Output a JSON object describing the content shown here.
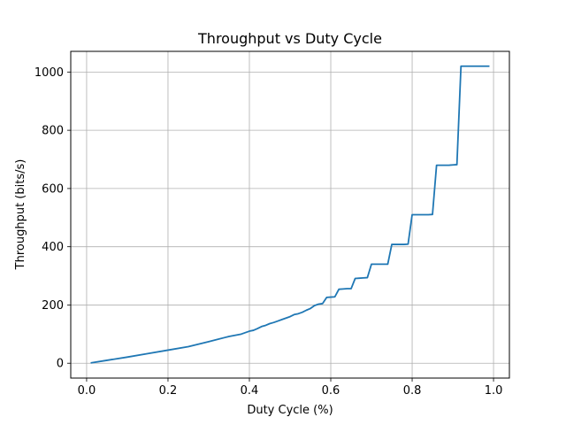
{
  "chart_data": {
    "type": "line",
    "title": "Throughput vs Duty Cycle",
    "xlabel": "Duty Cycle (%)",
    "ylabel": "Throughput (bits/s)",
    "xlim": [
      -0.039,
      1.039
    ],
    "ylim": [
      -51,
      1071
    ],
    "xticks": [
      0.0,
      0.2,
      0.4,
      0.6,
      0.8,
      1.0
    ],
    "xtick_labels": [
      "0.0",
      "0.2",
      "0.4",
      "0.6",
      "0.8",
      "1.0"
    ],
    "yticks": [
      0,
      200,
      400,
      600,
      800,
      1000
    ],
    "ytick_labels": [
      "0",
      "200",
      "400",
      "600",
      "800",
      "1000"
    ],
    "grid": true,
    "series": [
      {
        "color": "#1f77b4",
        "x": [
          0.01,
          0.05,
          0.1,
          0.15,
          0.2,
          0.25,
          0.3,
          0.35,
          0.38,
          0.4,
          0.41,
          0.42,
          0.43,
          0.44,
          0.45,
          0.46,
          0.47,
          0.48,
          0.49,
          0.5,
          0.51,
          0.52,
          0.53,
          0.54,
          0.55,
          0.56,
          0.57,
          0.58,
          0.59,
          0.6,
          0.61,
          0.62,
          0.63,
          0.64,
          0.65,
          0.66,
          0.67,
          0.68,
          0.69,
          0.7,
          0.71,
          0.72,
          0.73,
          0.74,
          0.75,
          0.76,
          0.77,
          0.78,
          0.79,
          0.8,
          0.81,
          0.82,
          0.83,
          0.84,
          0.85,
          0.86,
          0.87,
          0.88,
          0.89,
          0.9,
          0.91,
          0.92,
          0.93,
          0.94,
          0.95,
          0.96,
          0.97,
          0.98,
          0.99
        ],
        "y": [
          1,
          10,
          21,
          33,
          45,
          57,
          74,
          92,
          100,
          110,
          113,
          119,
          126,
          130,
          136,
          140,
          145,
          150,
          155,
          160,
          167,
          170,
          175,
          182,
          188,
          198,
          203,
          205,
          226,
          227,
          228,
          254,
          255,
          256,
          256,
          291,
          292,
          293,
          294,
          340,
          340,
          340,
          340,
          340,
          408,
          408,
          408,
          408,
          409,
          510,
          510,
          510,
          510,
          510,
          511,
          680,
          680,
          680,
          680,
          681,
          682,
          1020,
          1020,
          1020,
          1020,
          1020,
          1020,
          1020,
          1020
        ]
      }
    ]
  }
}
